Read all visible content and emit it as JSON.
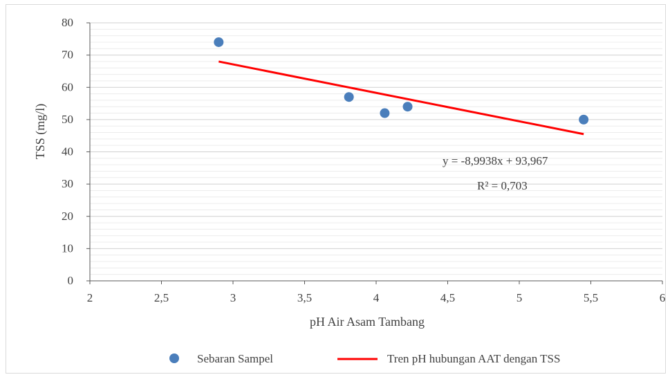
{
  "chart_data": {
    "type": "scatter",
    "xlabel": "pH Air Asam Tambang",
    "ylabel": "TSS (mg/l)",
    "xlim": [
      2,
      6
    ],
    "ylim": [
      0,
      80
    ],
    "x_ticks": [
      "2",
      "2,5",
      "3",
      "3,5",
      "4",
      "4,5",
      "5",
      "5,5",
      "6"
    ],
    "y_ticks": [
      "0",
      "10",
      "20",
      "30",
      "40",
      "50",
      "60",
      "70",
      "80"
    ],
    "grid": true,
    "legend_position": "bottom",
    "series": [
      {
        "name": "Sebaran Sampel",
        "kind": "points",
        "color": "#4a7ebb",
        "x": [
          2.9,
          3.81,
          4.06,
          4.22,
          5.45
        ],
        "y": [
          74,
          57,
          52,
          54,
          50
        ]
      },
      {
        "name": "Tren pH hubungan AAT dengan TSS",
        "kind": "trendline",
        "color": "#ff0000",
        "x": [
          2.9,
          5.45
        ],
        "y": [
          68,
          45.5
        ]
      }
    ],
    "annotations": {
      "equation": "y = -8,9938x + 93,967",
      "r_squared": "R² = 0,703"
    }
  }
}
